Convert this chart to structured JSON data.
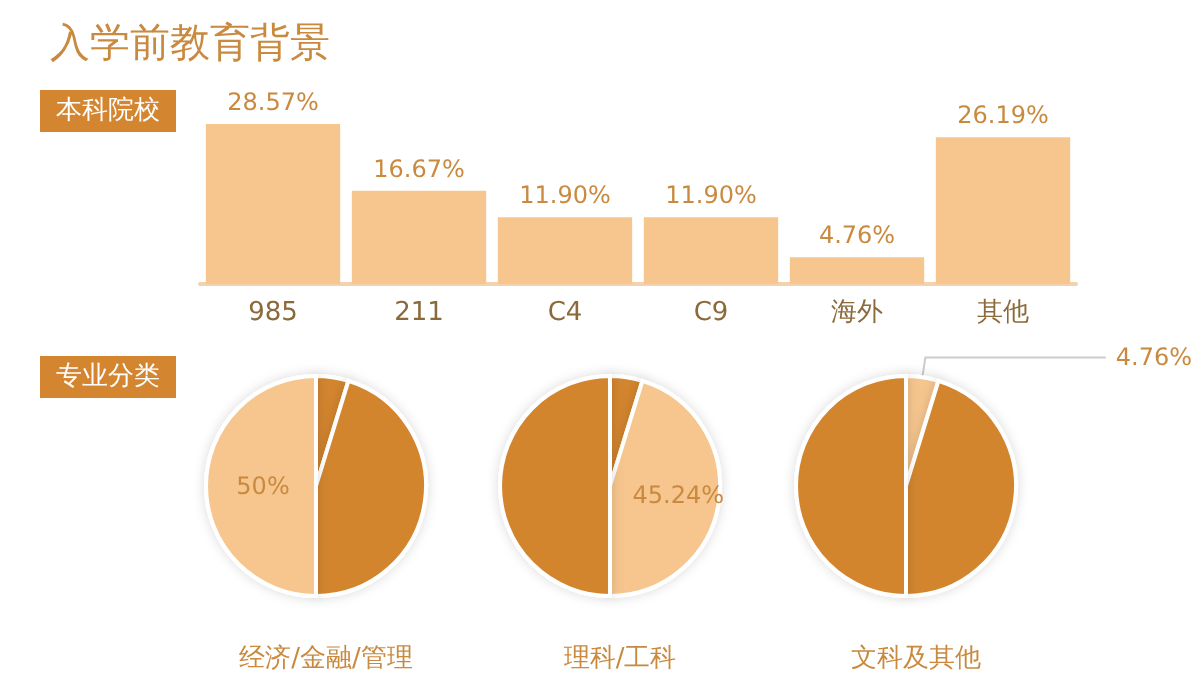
{
  "chart_data": [
    {
      "type": "bar",
      "title": "入学前教育背景",
      "subtitle": "本科院校",
      "categories": [
        "985",
        "211",
        "C4",
        "C9",
        "海外",
        "其他"
      ],
      "values": [
        28.57,
        16.67,
        11.9,
        11.9,
        4.76,
        26.19
      ],
      "value_labels": [
        "28.57%",
        "16.67%",
        "11.90%",
        "11.90%",
        "4.76%",
        "26.19%"
      ],
      "color": "#f6c68e"
    },
    {
      "type": "pie",
      "title": "经济/金融/管理",
      "annotations": [
        "专业分类"
      ],
      "categories": [
        null,
        null,
        null
      ],
      "values": [
        4.76,
        45.24,
        50
      ],
      "colors": [
        "#d3852f",
        "#d3852f",
        "#f6c68e"
      ],
      "value_labels": [
        null,
        null,
        "50%"
      ]
    },
    {
      "type": "pie",
      "title": "理科/工科",
      "categories": [
        null,
        null,
        null
      ],
      "values": [
        4.76,
        45.24,
        50
      ],
      "colors": [
        "#d3852f",
        "#f6c68e",
        "#d3852f"
      ],
      "value_labels": [
        null,
        "45.24%",
        null
      ]
    },
    {
      "type": "pie",
      "title": "文科及其他",
      "categories": [
        null,
        null,
        null
      ],
      "values": [
        4.76,
        45.24,
        50
      ],
      "colors": [
        "#f6c68e",
        "#d3852f",
        "#d3852f"
      ],
      "value_labels": [
        "4.76%",
        null,
        null
      ]
    }
  ]
}
